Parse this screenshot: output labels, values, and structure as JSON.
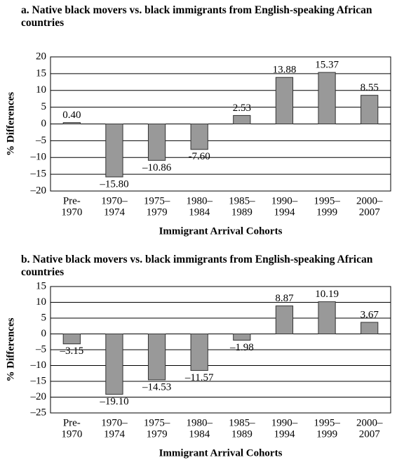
{
  "chart_data": [
    {
      "type": "bar",
      "title": "a. Native black movers vs. black immigrants from English-speaking African countries",
      "xlabel": "Immigrant Arrival Cohorts",
      "ylabel": "% Differences",
      "categories": [
        [
          "Pre-",
          "1970"
        ],
        [
          "1970–",
          "1974"
        ],
        [
          "1975–",
          "1979"
        ],
        [
          "1980–",
          "1984"
        ],
        [
          "1985–",
          "1989"
        ],
        [
          "1990–",
          "1994"
        ],
        [
          "1995–",
          "1999"
        ],
        [
          "2000–",
          "2007"
        ]
      ],
      "values": [
        0.4,
        -15.8,
        -10.86,
        -7.6,
        2.53,
        13.88,
        15.37,
        8.55
      ],
      "value_labels": [
        "0.40",
        "–15.80",
        "–10.86",
        "-7.60",
        "2.53",
        "13.88",
        "15.37",
        "8.55"
      ],
      "color": "#999999",
      "ylim": [
        -20,
        20
      ],
      "yticks": [
        {
          "value": -20,
          "label": "–20"
        },
        {
          "value": -15,
          "label": "–15"
        },
        {
          "value": -10,
          "label": "–10"
        },
        {
          "value": -5,
          "label": "–5"
        },
        0,
        5,
        10,
        15,
        20
      ],
      "grid": true
    },
    {
      "type": "bar",
      "title": "b. Native black movers vs. black immigrants from English-speaking African countries",
      "xlabel": "Immigrant Arrival Cohorts",
      "ylabel": "% Differences",
      "categories": [
        [
          "Pre-",
          "1970"
        ],
        [
          "1970–",
          "1974"
        ],
        [
          "1975–",
          "1979"
        ],
        [
          "1980–",
          "1984"
        ],
        [
          "1985–",
          "1989"
        ],
        [
          "1990–",
          "1994"
        ],
        [
          "1995–",
          "1999"
        ],
        [
          "2000–",
          "2007"
        ]
      ],
      "values": [
        -3.15,
        -19.1,
        -14.53,
        -11.57,
        -1.98,
        8.87,
        10.19,
        3.67
      ],
      "value_labels": [
        "–3.15",
        "–19.10",
        "–14.53",
        "–11.57",
        "–1.98",
        "8.87",
        "10.19",
        "3.67"
      ],
      "color": "#999999",
      "ylim": [
        -25,
        15
      ],
      "yticks": [
        {
          "value": -25,
          "label": "–25"
        },
        {
          "value": -20,
          "label": "–20"
        },
        {
          "value": -15,
          "label": "–15"
        },
        {
          "value": -10,
          "label": "–10"
        },
        {
          "value": -5,
          "label": "–5"
        },
        0,
        5,
        10,
        15
      ],
      "grid": true
    }
  ]
}
